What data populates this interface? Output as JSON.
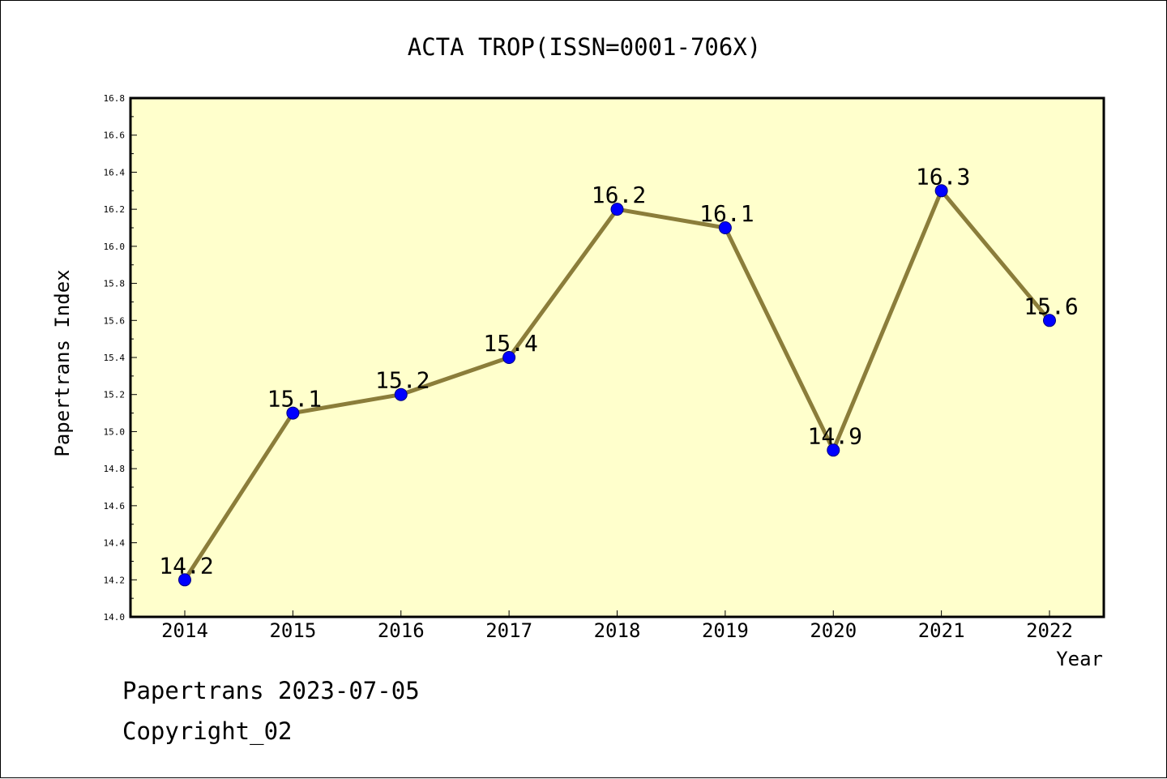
{
  "chart_data": {
    "type": "line",
    "title": "ACTA TROP(ISSN=0001-706X)",
    "xlabel": "Year",
    "ylabel": "Papertrans Index",
    "categories": [
      "2014",
      "2015",
      "2016",
      "2017",
      "2018",
      "2019",
      "2020",
      "2021",
      "2022"
    ],
    "series": [
      {
        "values": [
          14.2,
          15.1,
          15.2,
          15.4,
          16.2,
          16.1,
          14.9,
          16.3,
          15.6
        ],
        "data_labels": [
          "14.2",
          "15.1",
          "15.2",
          "15.4",
          "16.2",
          "16.1",
          "14.9",
          "16.3",
          "15.6"
        ]
      }
    ],
    "ylim": [
      14.0,
      16.8
    ],
    "yticks": [
      "14.0",
      "14.2",
      "14.4",
      "14.6",
      "14.8",
      "15.0",
      "15.2",
      "15.4",
      "15.6",
      "15.8",
      "16.0",
      "16.2",
      "16.4",
      "16.6",
      "16.8"
    ],
    "grid": false,
    "legend": "none",
    "colors": {
      "plot_background": "#ffffcc",
      "line": "#8b7d3a",
      "marker": "#0000ff",
      "marker_edge": "#000080",
      "axis": "#000000"
    }
  },
  "footer": {
    "date_text": "Papertrans 2023-07-05",
    "copyright_text": "Copyright_02"
  }
}
